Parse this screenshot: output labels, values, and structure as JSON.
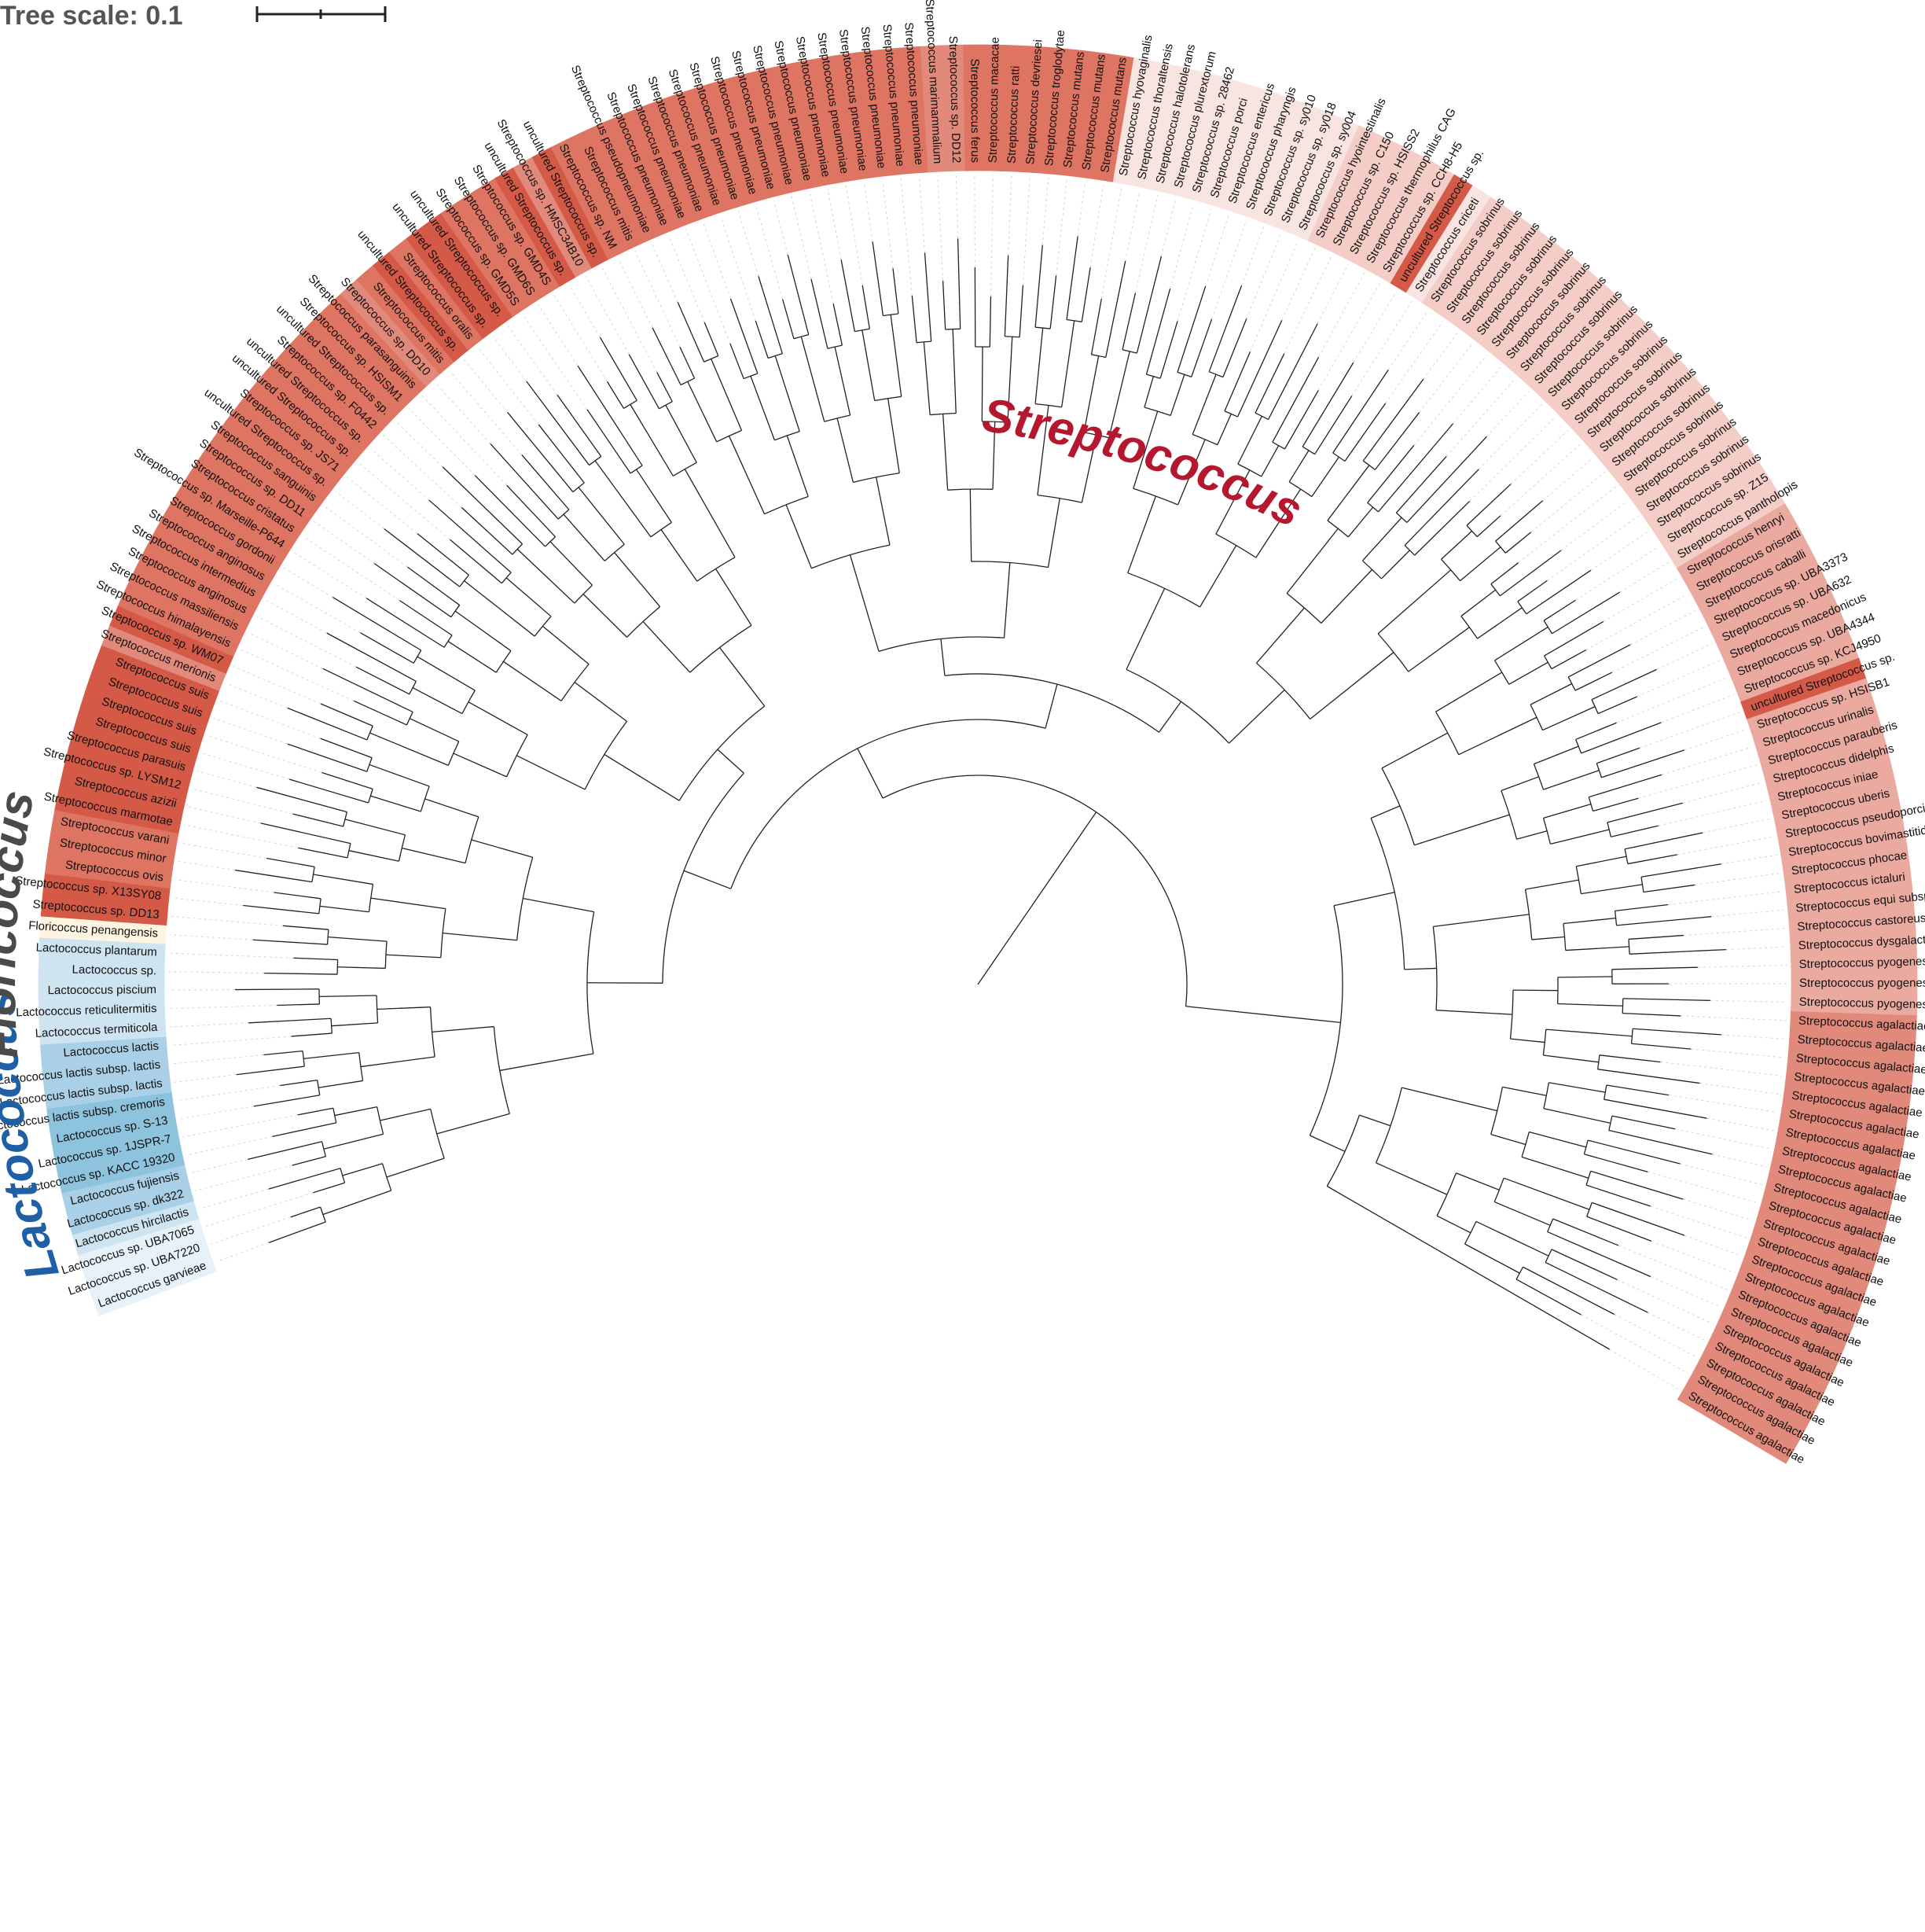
{
  "scale": {
    "label": "Tree scale: 0.1"
  },
  "genera": [
    {
      "name": "Lactococcus",
      "color": "#1f5fa6"
    },
    {
      "name": "Floricoccus",
      "color": "#4a4a4a"
    },
    {
      "name": "Streptococcus",
      "color": "#b5172f"
    }
  ],
  "colors": {
    "lactococcus_shades": [
      "#e6f1f8",
      "#cfe4f1",
      "#a9d0e6",
      "#8ec3de"
    ],
    "floricoccus": "#fdf5e2",
    "streptococcus_shades": [
      "#d45a47",
      "#de7462",
      "#e18a7b",
      "#ebaaa0",
      "#f3cdc6",
      "#f8e4e0"
    ],
    "branch": "#222222",
    "guide": "#d4d4d4"
  },
  "taxa": [
    {
      "name": "Lactococcus garvieae",
      "shade": 0,
      "genus": "Lactococcus"
    },
    {
      "name": "Lactococcus sp. UBA7220",
      "shade": 0,
      "genus": "Lactococcus"
    },
    {
      "name": "Lactococcus sp. UBA7065",
      "shade": 0,
      "genus": "Lactococcus"
    },
    {
      "name": "Lactococcus hircilactis",
      "shade": 1,
      "genus": "Lactococcus"
    },
    {
      "name": "Lactococcus sp. dk322",
      "shade": 2,
      "genus": "Lactococcus"
    },
    {
      "name": "Lactococcus fujiensis",
      "shade": 2,
      "genus": "Lactococcus"
    },
    {
      "name": "Lactococcus sp. KACC 19320",
      "shade": 3,
      "genus": "Lactococcus"
    },
    {
      "name": "Lactococcus sp. 1JSPR-7",
      "shade": 3,
      "genus": "Lactococcus"
    },
    {
      "name": "Lactococcus sp. S-13",
      "shade": 3,
      "genus": "Lactococcus"
    },
    {
      "name": "Lactococcus lactis subsp. cremoris",
      "shade": 3,
      "genus": "Lactococcus"
    },
    {
      "name": "Lactococcus lactis subsp. lactis",
      "shade": 2,
      "genus": "Lactococcus"
    },
    {
      "name": "Lactococcus lactis subsp. lactis",
      "shade": 2,
      "genus": "Lactococcus"
    },
    {
      "name": "Lactococcus lactis",
      "shade": 2,
      "genus": "Lactococcus"
    },
    {
      "name": "Lactococcus termiticola",
      "shade": 1,
      "genus": "Lactococcus"
    },
    {
      "name": "Lactococcus reticulitermitis",
      "shade": 1,
      "genus": "Lactococcus"
    },
    {
      "name": "Lactococcus piscium",
      "shade": 1,
      "genus": "Lactococcus"
    },
    {
      "name": "Lactococcus sp.",
      "shade": 1,
      "genus": "Lactococcus"
    },
    {
      "name": "Lactococcus plantarum",
      "shade": 1,
      "genus": "Lactococcus"
    },
    {
      "name": "Floricoccus penangensis",
      "shade": 0,
      "genus": "Floricoccus"
    },
    {
      "name": "Streptococcus sp. DD13",
      "shade": 0,
      "genus": "Streptococcus"
    },
    {
      "name": "Streptococcus sp. X13SY08",
      "shade": 0,
      "genus": "Streptococcus"
    },
    {
      "name": "Streptococcus ovis",
      "shade": 1,
      "genus": "Streptococcus"
    },
    {
      "name": "Streptococcus minor",
      "shade": 1,
      "genus": "Streptococcus"
    },
    {
      "name": "Streptococcus varani",
      "shade": 1,
      "genus": "Streptococcus"
    },
    {
      "name": "Streptococcus marmotae",
      "shade": 0,
      "genus": "Streptococcus"
    },
    {
      "name": "Streptococcus azizii",
      "shade": 0,
      "genus": "Streptococcus"
    },
    {
      "name": "Streptococcus sp. LYSM12",
      "shade": 0,
      "genus": "Streptococcus"
    },
    {
      "name": "Streptococcus parasuis",
      "shade": 0,
      "genus": "Streptococcus"
    },
    {
      "name": "Streptococcus suis",
      "shade": 0,
      "genus": "Streptococcus"
    },
    {
      "name": "Streptococcus suis",
      "shade": 0,
      "genus": "Streptococcus"
    },
    {
      "name": "Streptococcus suis",
      "shade": 0,
      "genus": "Streptococcus"
    },
    {
      "name": "Streptococcus suis",
      "shade": 0,
      "genus": "Streptococcus"
    },
    {
      "name": "Streptococcus merionis",
      "shade": 2,
      "genus": "Streptococcus"
    },
    {
      "name": "Streptococcus sp. WM07",
      "shade": 0,
      "genus": "Streptococcus"
    },
    {
      "name": "Streptococcus himalayensis",
      "shade": 1,
      "genus": "Streptococcus"
    },
    {
      "name": "Streptococcus massiliensis",
      "shade": 1,
      "genus": "Streptococcus"
    },
    {
      "name": "Streptococcus anginosus",
      "shade": 1,
      "genus": "Streptococcus"
    },
    {
      "name": "Streptococcus intermedius",
      "shade": 1,
      "genus": "Streptococcus"
    },
    {
      "name": "Streptococcus anginosus",
      "shade": 1,
      "genus": "Streptococcus"
    },
    {
      "name": "Streptococcus gordonii",
      "shade": 1,
      "genus": "Streptococcus"
    },
    {
      "name": "Streptococcus sp. Marseille-P644",
      "shade": 1,
      "genus": "Streptococcus"
    },
    {
      "name": "Streptococcus cristatus",
      "shade": 1,
      "genus": "Streptococcus"
    },
    {
      "name": "Streptococcus sp. DD11",
      "shade": 1,
      "genus": "Streptococcus"
    },
    {
      "name": "Streptococcus sanguinis",
      "shade": 1,
      "genus": "Streptococcus"
    },
    {
      "name": "uncultured Streptococcus sp.",
      "shade": 1,
      "genus": "Streptococcus"
    },
    {
      "name": "Streptococcus sp. JS71",
      "shade": 1,
      "genus": "Streptococcus"
    },
    {
      "name": "uncultured Streptococcus sp.",
      "shade": 1,
      "genus": "Streptococcus"
    },
    {
      "name": "uncultured Streptococcus sp.",
      "shade": 1,
      "genus": "Streptococcus"
    },
    {
      "name": "Streptococcus sp. F0442",
      "shade": 1,
      "genus": "Streptococcus"
    },
    {
      "name": "uncultured Streptococcus sp.",
      "shade": 1,
      "genus": "Streptococcus"
    },
    {
      "name": "Streptococcus sp. HSISM1",
      "shade": 1,
      "genus": "Streptococcus"
    },
    {
      "name": "Streptococcus parasanguinis",
      "shade": 1,
      "genus": "Streptococcus"
    },
    {
      "name": "Streptococcus sp. DD10",
      "shade": 2,
      "genus": "Streptococcus"
    },
    {
      "name": "Streptococcus mitis",
      "shade": 1,
      "genus": "Streptococcus"
    },
    {
      "name": "uncultured Streptococcus sp.",
      "shade": 0,
      "genus": "Streptococcus"
    },
    {
      "name": "Streptococcus oralis",
      "shade": 1,
      "genus": "Streptococcus"
    },
    {
      "name": "uncultured Streptococcus sp.",
      "shade": 0,
      "genus": "Streptococcus"
    },
    {
      "name": "uncultured Streptococcus sp.",
      "shade": 0,
      "genus": "Streptococcus"
    },
    {
      "name": "Streptococcus sp. GMD5S",
      "shade": 1,
      "genus": "Streptococcus"
    },
    {
      "name": "Streptococcus sp. GMD6S",
      "shade": 1,
      "genus": "Streptococcus"
    },
    {
      "name": "Streptococcus sp. GMD4S",
      "shade": 1,
      "genus": "Streptococcus"
    },
    {
      "name": "uncultured Streptococcus sp.",
      "shade": 0,
      "genus": "Streptococcus"
    },
    {
      "name": "Streptococcus sp. HMSC34B10",
      "shade": 2,
      "genus": "Streptococcus"
    },
    {
      "name": "uncultured Streptococcus sp.",
      "shade": 0,
      "genus": "Streptococcus"
    },
    {
      "name": "Streptococcus sp. NM",
      "shade": 1,
      "genus": "Streptococcus"
    },
    {
      "name": "Streptococcus mitis",
      "shade": 1,
      "genus": "Streptococcus"
    },
    {
      "name": "Streptococcus pseudopneumoniae",
      "shade": 1,
      "genus": "Streptococcus"
    },
    {
      "name": "Streptococcus pneumoniae",
      "shade": 1,
      "genus": "Streptococcus"
    },
    {
      "name": "Streptococcus pneumoniae",
      "shade": 1,
      "genus": "Streptococcus"
    },
    {
      "name": "Streptococcus pneumoniae",
      "shade": 1,
      "genus": "Streptococcus"
    },
    {
      "name": "Streptococcus pneumoniae",
      "shade": 1,
      "genus": "Streptococcus"
    },
    {
      "name": "Streptococcus pneumoniae",
      "shade": 1,
      "genus": "Streptococcus"
    },
    {
      "name": "Streptococcus pneumoniae",
      "shade": 1,
      "genus": "Streptococcus"
    },
    {
      "name": "Streptococcus pneumoniae",
      "shade": 1,
      "genus": "Streptococcus"
    },
    {
      "name": "Streptococcus pneumoniae",
      "shade": 1,
      "genus": "Streptococcus"
    },
    {
      "name": "Streptococcus pneumoniae",
      "shade": 1,
      "genus": "Streptococcus"
    },
    {
      "name": "Streptococcus pneumoniae",
      "shade": 1,
      "genus": "Streptococcus"
    },
    {
      "name": "Streptococcus pneumoniae",
      "shade": 1,
      "genus": "Streptococcus"
    },
    {
      "name": "Streptococcus pneumoniae",
      "shade": 1,
      "genus": "Streptococcus"
    },
    {
      "name": "Streptococcus pneumoniae",
      "shade": 1,
      "genus": "Streptococcus"
    },
    {
      "name": "Streptococcus pneumoniae",
      "shade": 1,
      "genus": "Streptococcus"
    },
    {
      "name": "Streptococcus pneumoniae",
      "shade": 1,
      "genus": "Streptococcus"
    },
    {
      "name": "Streptococcus marimammalium",
      "shade": 2,
      "genus": "Streptococcus"
    },
    {
      "name": "Streptococcus sp. DD12",
      "shade": 2,
      "genus": "Streptococcus"
    },
    {
      "name": "Streptococcus ferus",
      "shade": 1,
      "genus": "Streptococcus"
    },
    {
      "name": "Streptococcus macacae",
      "shade": 1,
      "genus": "Streptococcus"
    },
    {
      "name": "Streptococcus ratti",
      "shade": 1,
      "genus": "Streptococcus"
    },
    {
      "name": "Streptococcus devriesei",
      "shade": 1,
      "genus": "Streptococcus"
    },
    {
      "name": "Streptococcus troglodytae",
      "shade": 1,
      "genus": "Streptococcus"
    },
    {
      "name": "Streptococcus mutans",
      "shade": 1,
      "genus": "Streptococcus"
    },
    {
      "name": "Streptococcus mutans",
      "shade": 1,
      "genus": "Streptococcus"
    },
    {
      "name": "Streptococcus mutans",
      "shade": 1,
      "genus": "Streptococcus"
    },
    {
      "name": "Streptococcus hyovaginalis",
      "shade": 5,
      "genus": "Streptococcus"
    },
    {
      "name": "Streptococcus thoraltensis",
      "shade": 5,
      "genus": "Streptococcus"
    },
    {
      "name": "Streptococcus halotolerans",
      "shade": 5,
      "genus": "Streptococcus"
    },
    {
      "name": "Streptococcus plurextorum",
      "shade": 5,
      "genus": "Streptococcus"
    },
    {
      "name": "Streptococcus sp. 28462",
      "shade": 5,
      "genus": "Streptococcus"
    },
    {
      "name": "Streptococcus porci",
      "shade": 5,
      "genus": "Streptococcus"
    },
    {
      "name": "Streptococcus entericus",
      "shade": 5,
      "genus": "Streptococcus"
    },
    {
      "name": "Streptococcus pharyngis",
      "shade": 5,
      "genus": "Streptococcus"
    },
    {
      "name": "Streptococcus sp. sy010",
      "shade": 5,
      "genus": "Streptococcus"
    },
    {
      "name": "Streptococcus sp. sy018",
      "shade": 5,
      "genus": "Streptococcus"
    },
    {
      "name": "Streptococcus sp. sy004",
      "shade": 5,
      "genus": "Streptococcus"
    },
    {
      "name": "Streptococcus hyointestinalis",
      "shade": 4,
      "genus": "Streptococcus"
    },
    {
      "name": "Streptococcus sp. C150",
      "shade": 4,
      "genus": "Streptococcus"
    },
    {
      "name": "Streptococcus sp. HSISS2",
      "shade": 4,
      "genus": "Streptococcus"
    },
    {
      "name": "Streptococcus thermophilus CAG",
      "shade": 4,
      "genus": "Streptococcus"
    },
    {
      "name": "Streptococcus sp. CCH8-H5",
      "shade": 4,
      "genus": "Streptococcus"
    },
    {
      "name": "uncultured Streptococcus sp.",
      "shade": 0,
      "genus": "Streptococcus"
    },
    {
      "name": "Streptococcus criceti",
      "shade": 5,
      "genus": "Streptococcus"
    },
    {
      "name": "Streptococcus sobrinus",
      "shade": 4,
      "genus": "Streptococcus"
    },
    {
      "name": "Streptococcus sobrinus",
      "shade": 4,
      "genus": "Streptococcus"
    },
    {
      "name": "Streptococcus sobrinus",
      "shade": 4,
      "genus": "Streptococcus"
    },
    {
      "name": "Streptococcus sobrinus",
      "shade": 4,
      "genus": "Streptococcus"
    },
    {
      "name": "Streptococcus sobrinus",
      "shade": 4,
      "genus": "Streptococcus"
    },
    {
      "name": "Streptococcus sobrinus",
      "shade": 4,
      "genus": "Streptococcus"
    },
    {
      "name": "Streptococcus sobrinus",
      "shade": 4,
      "genus": "Streptococcus"
    },
    {
      "name": "Streptococcus sobrinus",
      "shade": 4,
      "genus": "Streptococcus"
    },
    {
      "name": "Streptococcus sobrinus",
      "shade": 4,
      "genus": "Streptococcus"
    },
    {
      "name": "Streptococcus sobrinus",
      "shade": 4,
      "genus": "Streptococcus"
    },
    {
      "name": "Streptococcus sobrinus",
      "shade": 4,
      "genus": "Streptococcus"
    },
    {
      "name": "Streptococcus sobrinus",
      "shade": 4,
      "genus": "Streptococcus"
    },
    {
      "name": "Streptococcus sobrinus",
      "shade": 4,
      "genus": "Streptococcus"
    },
    {
      "name": "Streptococcus sobrinus",
      "shade": 4,
      "genus": "Streptococcus"
    },
    {
      "name": "Streptococcus sobrinus",
      "shade": 4,
      "genus": "Streptococcus"
    },
    {
      "name": "Streptococcus sobrinus",
      "shade": 4,
      "genus": "Streptococcus"
    },
    {
      "name": "Streptococcus sobrinus",
      "shade": 4,
      "genus": "Streptococcus"
    },
    {
      "name": "Streptococcus sobrinus",
      "shade": 4,
      "genus": "Streptococcus"
    },
    {
      "name": "Streptococcus sp. Z15",
      "shade": 4,
      "genus": "Streptococcus"
    },
    {
      "name": "Streptococcus pantholopis",
      "shade": 4,
      "genus": "Streptococcus"
    },
    {
      "name": "Streptococcus henryi",
      "shade": 3,
      "genus": "Streptococcus"
    },
    {
      "name": "Streptococcus orisratti",
      "shade": 3,
      "genus": "Streptococcus"
    },
    {
      "name": "Streptococcus caballi",
      "shade": 3,
      "genus": "Streptococcus"
    },
    {
      "name": "Streptococcus sp. UBA3373",
      "shade": 3,
      "genus": "Streptococcus"
    },
    {
      "name": "Streptococcus sp. UBA632",
      "shade": 3,
      "genus": "Streptococcus"
    },
    {
      "name": "Streptococcus macedonicus",
      "shade": 3,
      "genus": "Streptococcus"
    },
    {
      "name": "Streptococcus sp. UBA4344",
      "shade": 3,
      "genus": "Streptococcus"
    },
    {
      "name": "Streptococcus sp. KCJ4950",
      "shade": 3,
      "genus": "Streptococcus"
    },
    {
      "name": "uncultured Streptococcus sp.",
      "shade": 0,
      "genus": "Streptococcus"
    },
    {
      "name": "Streptococcus sp. HSISB1",
      "shade": 3,
      "genus": "Streptococcus"
    },
    {
      "name": "Streptococcus urinalis",
      "shade": 3,
      "genus": "Streptococcus"
    },
    {
      "name": "Streptococcus parauberis",
      "shade": 3,
      "genus": "Streptococcus"
    },
    {
      "name": "Streptococcus didelphis",
      "shade": 3,
      "genus": "Streptococcus"
    },
    {
      "name": "Streptococcus iniae",
      "shade": 3,
      "genus": "Streptococcus"
    },
    {
      "name": "Streptococcus uberis",
      "shade": 3,
      "genus": "Streptococcus"
    },
    {
      "name": "Streptococcus pseudoporcinus",
      "shade": 3,
      "genus": "Streptococcus"
    },
    {
      "name": "Streptococcus bovimastitidis",
      "shade": 3,
      "genus": "Streptococcus"
    },
    {
      "name": "Streptococcus phocae",
      "shade": 3,
      "genus": "Streptococcus"
    },
    {
      "name": "Streptococcus ictaluri",
      "shade": 3,
      "genus": "Streptococcus"
    },
    {
      "name": "Streptococcus equi subsp. ruminatorum",
      "shade": 3,
      "genus": "Streptococcus"
    },
    {
      "name": "Streptococcus castoreus",
      "shade": 3,
      "genus": "Streptococcus"
    },
    {
      "name": "Streptococcus dysgalactiae",
      "shade": 3,
      "genus": "Streptococcus"
    },
    {
      "name": "Streptococcus pyogenes",
      "shade": 3,
      "genus": "Streptococcus"
    },
    {
      "name": "Streptococcus pyogenes",
      "shade": 3,
      "genus": "Streptococcus"
    },
    {
      "name": "Streptococcus pyogenes",
      "shade": 3,
      "genus": "Streptococcus"
    },
    {
      "name": "Streptococcus agalactiae",
      "shade": 2,
      "genus": "Streptococcus"
    },
    {
      "name": "Streptococcus agalactiae",
      "shade": 2,
      "genus": "Streptococcus"
    },
    {
      "name": "Streptococcus agalactiae",
      "shade": 2,
      "genus": "Streptococcus"
    },
    {
      "name": "Streptococcus agalactiae",
      "shade": 2,
      "genus": "Streptococcus"
    },
    {
      "name": "Streptococcus agalactiae",
      "shade": 2,
      "genus": "Streptococcus"
    },
    {
      "name": "Streptococcus agalactiae",
      "shade": 2,
      "genus": "Streptococcus"
    },
    {
      "name": "Streptococcus agalactiae",
      "shade": 2,
      "genus": "Streptococcus"
    },
    {
      "name": "Streptococcus agalactiae",
      "shade": 2,
      "genus": "Streptococcus"
    },
    {
      "name": "Streptococcus agalactiae",
      "shade": 2,
      "genus": "Streptococcus"
    },
    {
      "name": "Streptococcus agalactiae",
      "shade": 2,
      "genus": "Streptococcus"
    },
    {
      "name": "Streptococcus agalactiae",
      "shade": 2,
      "genus": "Streptococcus"
    },
    {
      "name": "Streptococcus agalactiae",
      "shade": 2,
      "genus": "Streptococcus"
    },
    {
      "name": "Streptococcus agalactiae",
      "shade": 2,
      "genus": "Streptococcus"
    },
    {
      "name": "Streptococcus agalactiae",
      "shade": 2,
      "genus": "Streptococcus"
    },
    {
      "name": "Streptococcus agalactiae",
      "shade": 2,
      "genus": "Streptococcus"
    },
    {
      "name": "Streptococcus agalactiae",
      "shade": 2,
      "genus": "Streptococcus"
    },
    {
      "name": "Streptococcus agalactiae",
      "shade": 2,
      "genus": "Streptococcus"
    },
    {
      "name": "Streptococcus agalactiae",
      "shade": 2,
      "genus": "Streptococcus"
    },
    {
      "name": "Streptococcus agalactiae",
      "shade": 2,
      "genus": "Streptococcus"
    },
    {
      "name": "Streptococcus agalactiae",
      "shade": 2,
      "genus": "Streptococcus"
    },
    {
      "name": "Streptococcus agalactiae",
      "shade": 2,
      "genus": "Streptococcus"
    },
    {
      "name": "Streptococcus agalactiae",
      "shade": 2,
      "genus": "Streptococcus"
    }
  ]
}
